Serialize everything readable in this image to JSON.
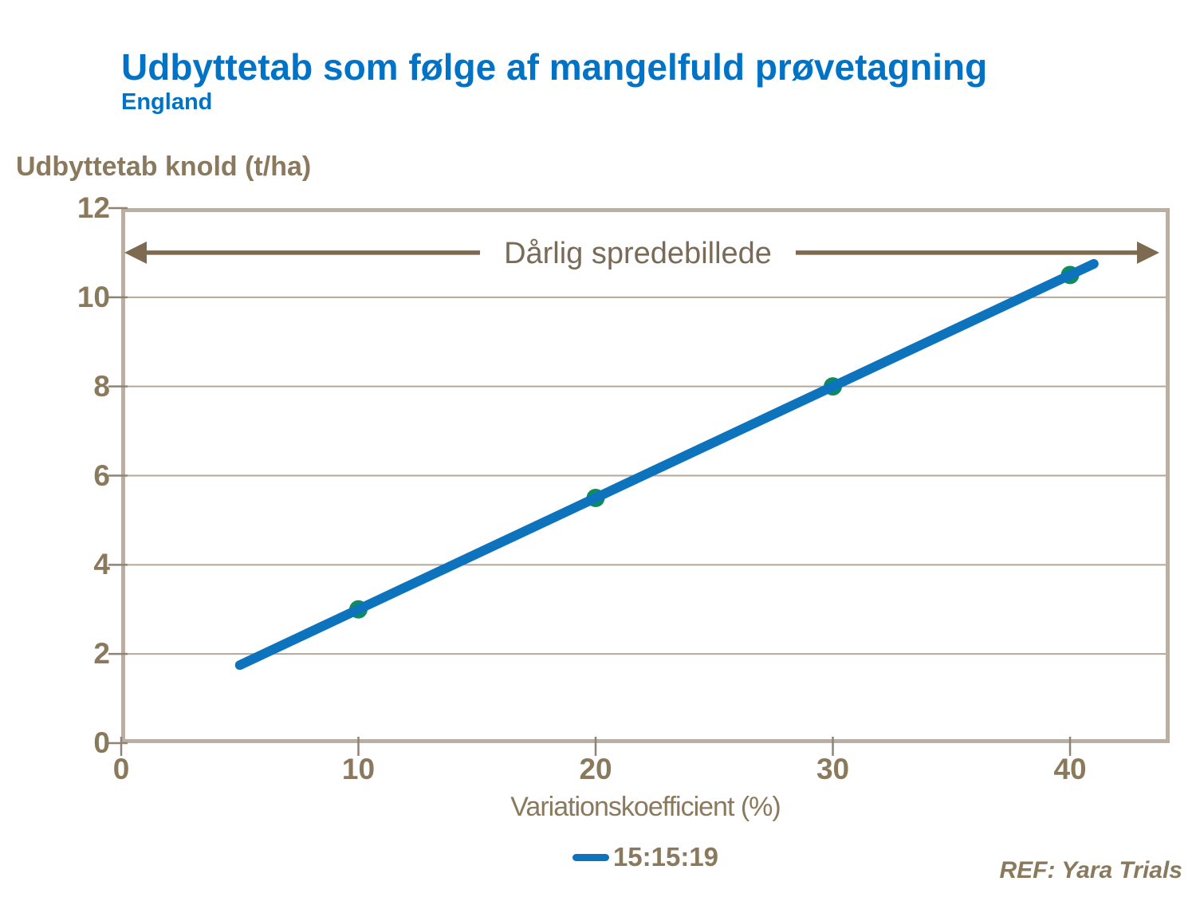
{
  "header": {
    "title": "Udbyttetab som følge af mangelfuld prøvetagning",
    "subtitle": "England"
  },
  "footer": {
    "ref": "REF: Yara Trials"
  },
  "colors": {
    "title_blue": "#0173C7",
    "axis_text_brown": "#8A795C",
    "annotation_text": "#7A6A58",
    "arrow_brown": "#7E6A50",
    "line_blue": "#0D73BD",
    "marker_green": "#0E8C5C",
    "plot_border": "#BBAFA4",
    "gridline": "#B3A79C",
    "tick_mark": "#8F8376"
  },
  "chart_data": {
    "type": "line",
    "title": "Udbyttetab som følge af mangelfuld prøvetagning",
    "subtitle": "England",
    "y_axis_title": "Udbyttetab knold (t/ha)",
    "xlabel": "Variationskoefficient (%)",
    "x_ticks": [
      0,
      10,
      20,
      30,
      40
    ],
    "y_ticks": [
      0,
      2,
      4,
      6,
      8,
      10,
      12
    ],
    "xlim": [
      0,
      44.2
    ],
    "ylim": [
      0,
      12
    ],
    "grid": "horizontal gridlines at each y tick",
    "legend_position": "bottom-center",
    "annotation": {
      "label": "Dårlig spredebillede",
      "y": 11.0,
      "style": "double-headed horizontal arrow spanning plot width, label in gap"
    },
    "series": [
      {
        "name": "15:15:19",
        "x": [
          5,
          10,
          20,
          30,
          40,
          41
        ],
        "y": [
          1.75,
          3.0,
          5.5,
          8.0,
          10.5,
          10.75
        ],
        "markers": [
          [
            10,
            3.0
          ],
          [
            20,
            5.5
          ],
          [
            30,
            8.0
          ],
          [
            40,
            10.5
          ]
        ]
      }
    ]
  }
}
